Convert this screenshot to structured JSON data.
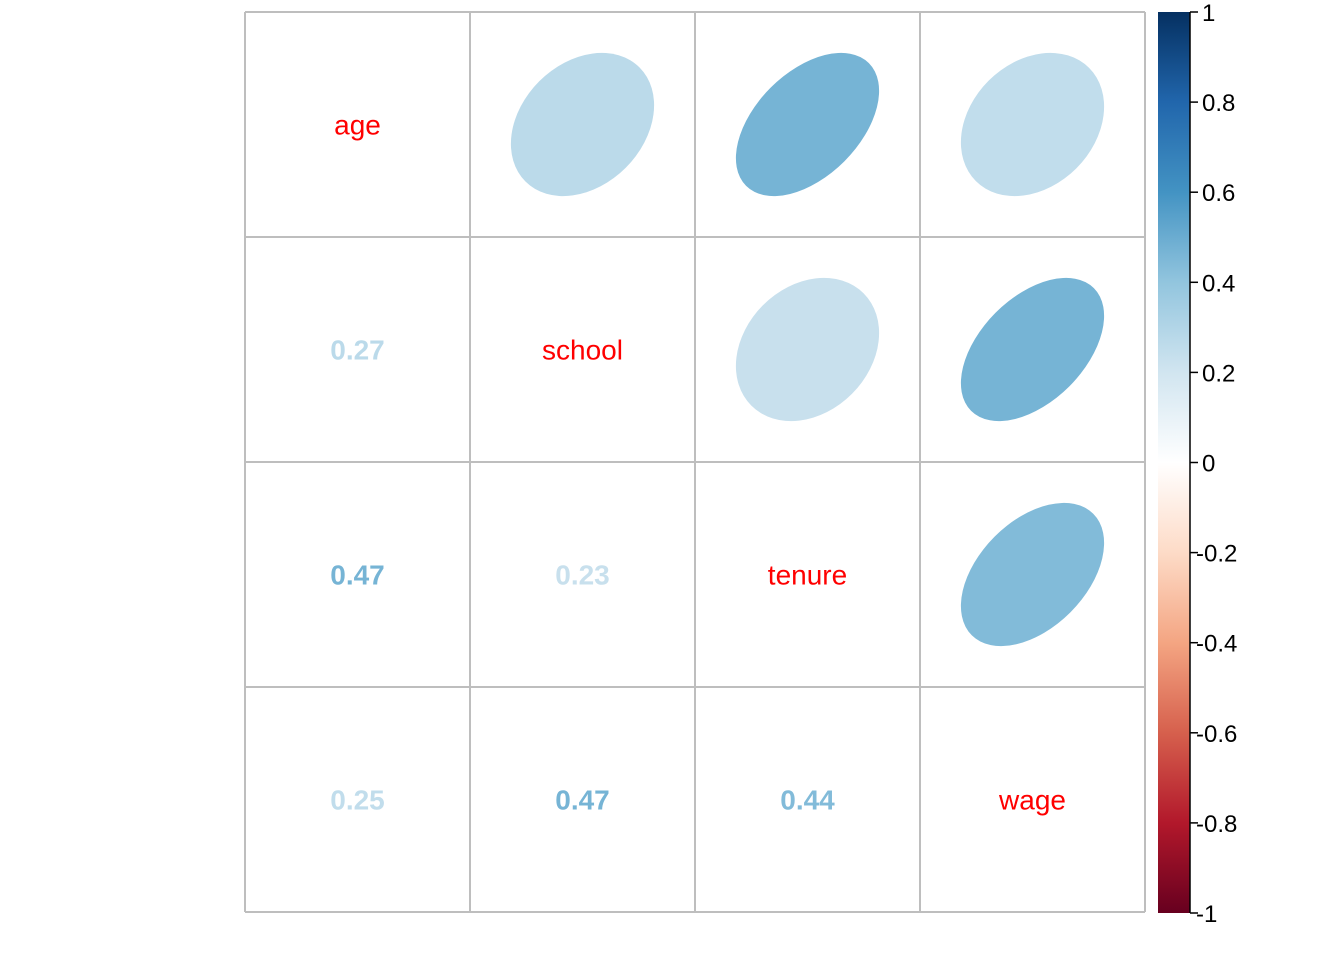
{
  "chart_data": {
    "type": "heatmap",
    "variables": [
      "age",
      "school",
      "tenure",
      "wage"
    ],
    "correlation_matrix": [
      [
        1.0,
        0.27,
        0.47,
        0.25
      ],
      [
        0.27,
        1.0,
        0.23,
        0.47
      ],
      [
        0.47,
        0.23,
        1.0,
        0.44
      ],
      [
        0.25,
        0.47,
        0.44,
        1.0
      ]
    ],
    "upper_method": "ellipse",
    "lower_method": "number",
    "diagonal": "variable names",
    "lower_labels": [
      {
        "row": "school",
        "col": "age",
        "text": "0.27"
      },
      {
        "row": "tenure",
        "col": "age",
        "text": "0.47"
      },
      {
        "row": "tenure",
        "col": "school",
        "text": "0.23"
      },
      {
        "row": "wage",
        "col": "age",
        "text": "0.25"
      },
      {
        "row": "wage",
        "col": "school",
        "text": "0.47"
      },
      {
        "row": "wage",
        "col": "tenure",
        "text": "0.44"
      }
    ],
    "colorbar": {
      "range": [
        -1,
        1
      ],
      "ticks": [
        "1",
        "0.8",
        "0.6",
        "0.4",
        "0.2",
        "0",
        "-0.2",
        "-0.4",
        "-0.6",
        "-0.8",
        "-1"
      ],
      "palette": [
        "#67001F",
        "#B2182B",
        "#D6604D",
        "#F4A582",
        "#FDDBC7",
        "#FFFFFF",
        "#D1E5F0",
        "#92C5DE",
        "#4393C3",
        "#2166AC",
        "#053061"
      ]
    },
    "diagonal_label_color": "#FF0000",
    "grid": true
  }
}
